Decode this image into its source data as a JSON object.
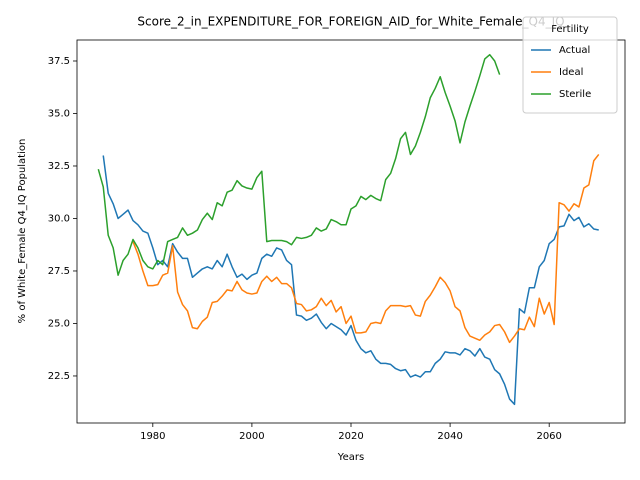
{
  "chart_data": {
    "type": "line",
    "title": "Score_2_in_EXPENDITURE_FOR_FOREIGN_AID_for_White_Female_Q4_IQ",
    "xlabel": "Years",
    "ylabel": "% of White_Female Q4_IQ Population",
    "legend_title": "Fertility",
    "legend": "upper right",
    "x": [
      1969,
      1970,
      1971,
      1972,
      1973,
      1974,
      1975,
      1976,
      1977,
      1978,
      1979,
      1980,
      1981,
      1982,
      1983,
      1984,
      1985,
      1986,
      1987,
      1988,
      1989,
      1990,
      1991,
      1992,
      1993,
      1994,
      1995,
      1996,
      1997,
      1998,
      1999,
      2000,
      2001,
      2002,
      2003,
      2004,
      2005,
      2006,
      2007,
      2008,
      2009,
      2010,
      2011,
      2012,
      2013,
      2014,
      2015,
      2016,
      2017,
      2018,
      2019,
      2020,
      2021,
      2022,
      2023,
      2024,
      2025,
      2026,
      2027,
      2028,
      2029,
      2030,
      2031,
      2032,
      2033,
      2034,
      2035,
      2036,
      2037,
      2038,
      2039,
      2040,
      2041,
      2042,
      2043,
      2044,
      2045,
      2046,
      2047,
      2048,
      2049,
      2050,
      2051,
      2052,
      2053,
      2054,
      2055,
      2056,
      2057,
      2058,
      2059,
      2060,
      2061,
      2062,
      2063,
      2064,
      2065,
      2066,
      2067,
      2068,
      2069,
      2070
    ],
    "series": [
      {
        "name": "Actual",
        "color": "#1f77b4",
        "values": [
          null,
          33.0,
          31.2,
          30.7,
          30.0,
          30.2,
          30.4,
          29.9,
          29.7,
          29.4,
          29.3,
          28.6,
          27.8,
          28.0,
          27.7,
          28.8,
          28.4,
          28.1,
          28.1,
          27.2,
          27.4,
          27.6,
          27.7,
          27.6,
          28.0,
          27.7,
          28.3,
          27.7,
          27.2,
          27.35,
          27.1,
          27.3,
          27.4,
          28.1,
          28.3,
          28.2,
          28.6,
          28.5,
          28.0,
          27.8,
          25.4,
          25.35,
          25.15,
          25.25,
          25.45,
          25.05,
          24.75,
          25.0,
          24.85,
          24.7,
          24.45,
          24.9,
          24.2,
          23.8,
          23.6,
          23.7,
          23.3,
          23.1,
          23.1,
          23.05,
          22.85,
          22.75,
          22.8,
          22.45,
          22.55,
          22.45,
          22.7,
          22.7,
          23.1,
          23.3,
          23.65,
          23.6,
          23.6,
          23.5,
          23.8,
          23.7,
          23.45,
          23.8,
          23.4,
          23.3,
          22.8,
          22.6,
          22.1,
          21.4,
          21.15,
          25.7,
          25.5,
          26.7,
          26.7,
          27.7,
          28.0,
          28.8,
          29.0,
          29.6,
          29.65,
          30.2,
          29.9,
          30.05,
          29.6,
          29.75,
          29.5,
          29.45
        ]
      },
      {
        "name": "Ideal",
        "color": "#ff7f0e",
        "values": [
          null,
          null,
          null,
          null,
          null,
          null,
          null,
          28.9,
          28.3,
          27.5,
          26.8,
          26.8,
          26.85,
          27.3,
          27.4,
          28.7,
          26.5,
          25.9,
          25.6,
          24.8,
          24.75,
          25.1,
          25.3,
          26.0,
          26.05,
          26.3,
          26.6,
          26.55,
          27.0,
          26.6,
          26.45,
          26.4,
          26.45,
          27.0,
          27.25,
          27.0,
          27.2,
          26.9,
          26.9,
          26.7,
          25.95,
          25.9,
          25.6,
          25.65,
          25.8,
          26.2,
          25.85,
          26.1,
          25.55,
          25.8,
          25.0,
          25.35,
          24.55,
          24.55,
          24.6,
          25.0,
          25.05,
          25.0,
          25.6,
          25.85,
          25.85,
          25.85,
          25.8,
          25.85,
          25.4,
          25.35,
          26.05,
          26.35,
          26.75,
          27.2,
          26.95,
          26.55,
          25.8,
          25.6,
          24.8,
          24.4,
          24.3,
          24.2,
          24.45,
          24.6,
          24.9,
          24.95,
          24.6,
          24.1,
          24.4,
          24.75,
          24.7,
          25.3,
          24.85,
          26.2,
          25.45,
          26.0,
          24.95,
          30.75,
          30.65,
          30.35,
          30.7,
          30.55,
          31.45,
          31.6,
          32.75,
          33.05
        ]
      },
      {
        "name": "Sterile",
        "color": "#2ca02c",
        "values": [
          32.35,
          31.5,
          29.2,
          28.6,
          27.3,
          28.0,
          28.3,
          29.0,
          28.6,
          28.0,
          27.7,
          27.6,
          28.0,
          27.8,
          28.9,
          29.0,
          29.1,
          29.55,
          29.2,
          29.3,
          29.45,
          29.95,
          30.25,
          29.95,
          30.75,
          30.6,
          31.25,
          31.35,
          31.8,
          31.55,
          31.45,
          31.4,
          31.95,
          32.25,
          28.9,
          28.95,
          28.95,
          28.95,
          28.9,
          28.75,
          29.1,
          29.05,
          29.1,
          29.2,
          29.55,
          29.4,
          29.5,
          29.95,
          29.85,
          29.7,
          29.7,
          30.45,
          30.6,
          31.05,
          30.9,
          31.1,
          30.95,
          30.85,
          31.85,
          32.15,
          32.85,
          33.8,
          34.1,
          33.05,
          33.45,
          34.1,
          34.85,
          35.75,
          36.2,
          36.75,
          36.0,
          35.35,
          34.65,
          33.6,
          34.6,
          35.35,
          36.05,
          36.8,
          37.6,
          37.8,
          37.5,
          36.85,
          null,
          null,
          null,
          null,
          null,
          null,
          null,
          null,
          null,
          null,
          null,
          null,
          null,
          null,
          null,
          null,
          null,
          null,
          null,
          null
        ]
      }
    ],
    "xlim": [
      1964.7,
      2075.3
    ],
    "xticks": [
      1980,
      2000,
      2020,
      2040,
      2060
    ],
    "ylim": [
      20.26,
      38.5
    ],
    "yticks": [
      22.5,
      {
        "value": 25,
        "label": "25.0"
      },
      27.5,
      {
        "value": 30,
        "label": "30.0"
      },
      32.5,
      {
        "value": 35,
        "label": "35.0"
      },
      37.5
    ],
    "grid": false
  }
}
